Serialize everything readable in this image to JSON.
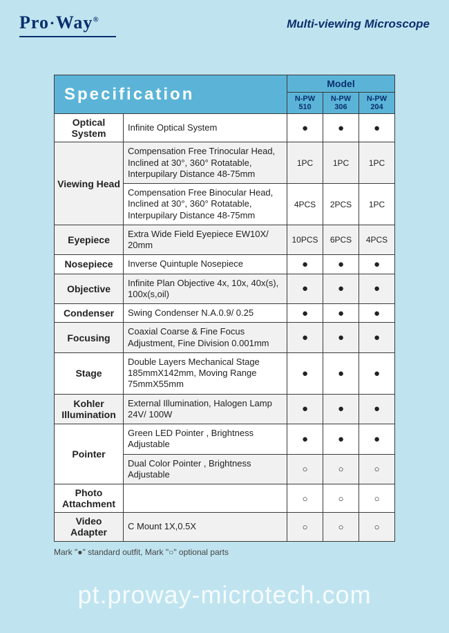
{
  "header": {
    "logo_pro": "Pro",
    "logo_dot": "•",
    "logo_way": "Way",
    "logo_reg": "®",
    "subtitle": "Multi-viewing Microscope"
  },
  "table": {
    "title": "Specification",
    "model_header": "Model",
    "models": [
      "N-PW 510",
      "N-PW 306",
      "N-PW 204"
    ],
    "dot": "●",
    "circle": "○",
    "rows": [
      {
        "hdr": "Optical System",
        "desc": "Infinite Optical System",
        "vals": [
          "●",
          "●",
          "●"
        ],
        "alt": false
      },
      {
        "hdr": "Viewing Head",
        "desc": "Compensation Free Trinocular Head, Inclined at 30°, 360° Rotatable, Interpupilary Distance 48-75mm",
        "vals": [
          "1PC",
          "1PC",
          "1PC"
        ],
        "alt": true,
        "rowspan": 2
      },
      {
        "desc": "Compensation Free Binocular Head, Inclined at 30°, 360° Rotatable, Interpupilary Distance 48-75mm",
        "vals": [
          "4PCS",
          "2PCS",
          "1PC"
        ],
        "alt": false
      },
      {
        "hdr": "Eyepiece",
        "desc": "Extra Wide Field Eyepiece EW10X/ 20mm",
        "vals": [
          "10PCS",
          "6PCS",
          "4PCS"
        ],
        "alt": true
      },
      {
        "hdr": "Nosepiece",
        "desc": "Inverse Quintuple Nosepiece",
        "vals": [
          "●",
          "●",
          "●"
        ],
        "alt": false
      },
      {
        "hdr": "Objective",
        "desc": "Infinite Plan Objective 4x, 10x, 40x(s), 100x(s,oil)",
        "vals": [
          "●",
          "●",
          "●"
        ],
        "alt": true
      },
      {
        "hdr": "Condenser",
        "desc": "Swing Condenser N.A.0.9/ 0.25",
        "vals": [
          "●",
          "●",
          "●"
        ],
        "alt": false
      },
      {
        "hdr": "Focusing",
        "desc": "Coaxial Coarse & Fine Focus Adjustment, Fine Division 0.001mm",
        "vals": [
          "●",
          "●",
          "●"
        ],
        "alt": true
      },
      {
        "hdr": "Stage",
        "desc": "Double Layers Mechanical Stage 185mmX142mm, Moving Range 75mmX55mm",
        "vals": [
          "●",
          "●",
          "●"
        ],
        "alt": false
      },
      {
        "hdr": "Kohler Illumination",
        "desc": "External Illumination, Halogen Lamp 24V/ 100W",
        "vals": [
          "●",
          "●",
          "●"
        ],
        "alt": true
      },
      {
        "hdr": "Pointer",
        "desc": "Green LED Pointer , Brightness Adjustable",
        "vals": [
          "●",
          "●",
          "●"
        ],
        "alt": false,
        "rowspan": 2
      },
      {
        "desc": "Dual Color Pointer , Brightness Adjustable",
        "vals": [
          "○",
          "○",
          "○"
        ],
        "alt": true
      },
      {
        "hdr": "Photo Attachment",
        "desc": "",
        "vals": [
          "○",
          "○",
          "○"
        ],
        "alt": false
      },
      {
        "hdr": "Video Adapter",
        "desc": "C Mount 1X,0.5X",
        "vals": [
          "○",
          "○",
          "○"
        ],
        "alt": true
      }
    ]
  },
  "footnote": "Mark \"●\" standard outfit, Mark \"○\" optional parts",
  "watermark": "pt.proway-microtech.com"
}
